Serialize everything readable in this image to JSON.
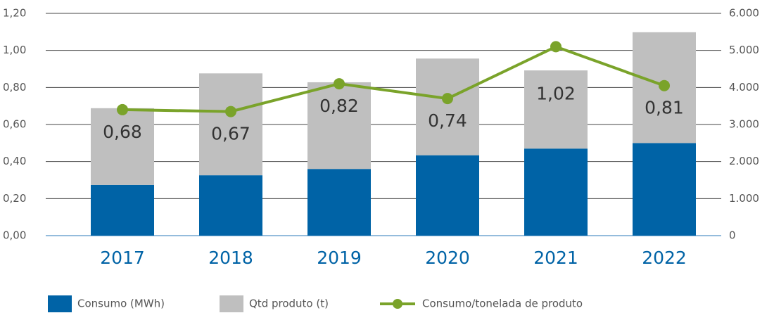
{
  "chart_data": {
    "type": "bar",
    "categories": [
      "2017",
      "2018",
      "2019",
      "2020",
      "2021",
      "2022"
    ],
    "series": [
      {
        "name": "Consumo (MWh)",
        "color": "#0063a6",
        "axis": "y2",
        "kind": "bar",
        "values": [
          1370,
          1630,
          1800,
          2170,
          2350,
          2500
        ]
      },
      {
        "name": "Qtd produto (t)",
        "color": "#bfbfbf",
        "axis": "y2",
        "kind": "bar",
        "values": [
          2070,
          2750,
          2340,
          2610,
          2110,
          2990
        ]
      },
      {
        "name": "Consumo/tonelada de produto",
        "color": "#7aa32a",
        "kind": "line",
        "values": [
          0.68,
          0.67,
          0.82,
          0.74,
          1.02,
          0.81
        ],
        "value_labels": [
          "0,68",
          "0,67",
          "0,82",
          "0,74",
          "1,02",
          "0,81"
        ]
      }
    ],
    "stacked": true,
    "ylim": [
      0,
      1.2
    ],
    "yticks": [
      {
        "value": 0,
        "label": "0,00"
      },
      {
        "value": 0.2,
        "label": "0,20"
      },
      {
        "value": 0.4,
        "label": "0,40"
      },
      {
        "value": 0.6,
        "label": "0,60"
      },
      {
        "value": 0.8,
        "label": "0,80"
      },
      {
        "value": 1.0,
        "label": "1,00"
      },
      {
        "value": 1.2,
        "label": "1,20"
      }
    ],
    "y2lim": [
      0,
      6000
    ],
    "y2ticks": [
      0,
      {
        "value": 1000,
        "label": "1.000"
      },
      {
        "value": 2000,
        "label": "2.000"
      },
      {
        "value": 3000,
        "label": "3.000"
      },
      {
        "value": 4000,
        "label": "4.000"
      },
      {
        "value": 5000,
        "label": "5.000"
      },
      {
        "value": 6000,
        "label": "6.000"
      }
    ],
    "grid": true,
    "legend": "bottom"
  }
}
